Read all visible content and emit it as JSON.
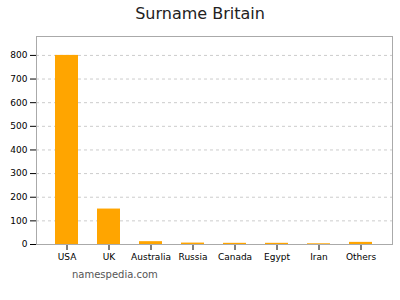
{
  "chart_data": {
    "type": "bar",
    "title": "Surname Britain",
    "categories": [
      "USA",
      "UK",
      "Australia",
      "Russia",
      "Canada",
      "Egypt",
      "Iran",
      "Others"
    ],
    "values": [
      800,
      150,
      12,
      6,
      5,
      5,
      3,
      9
    ],
    "color": "#FFA500",
    "ylim": [
      0,
      880
    ],
    "yticks": [
      0,
      100,
      200,
      300,
      400,
      500,
      600,
      700,
      800
    ],
    "grid": true,
    "annotations": [
      "namespedia.com"
    ]
  }
}
